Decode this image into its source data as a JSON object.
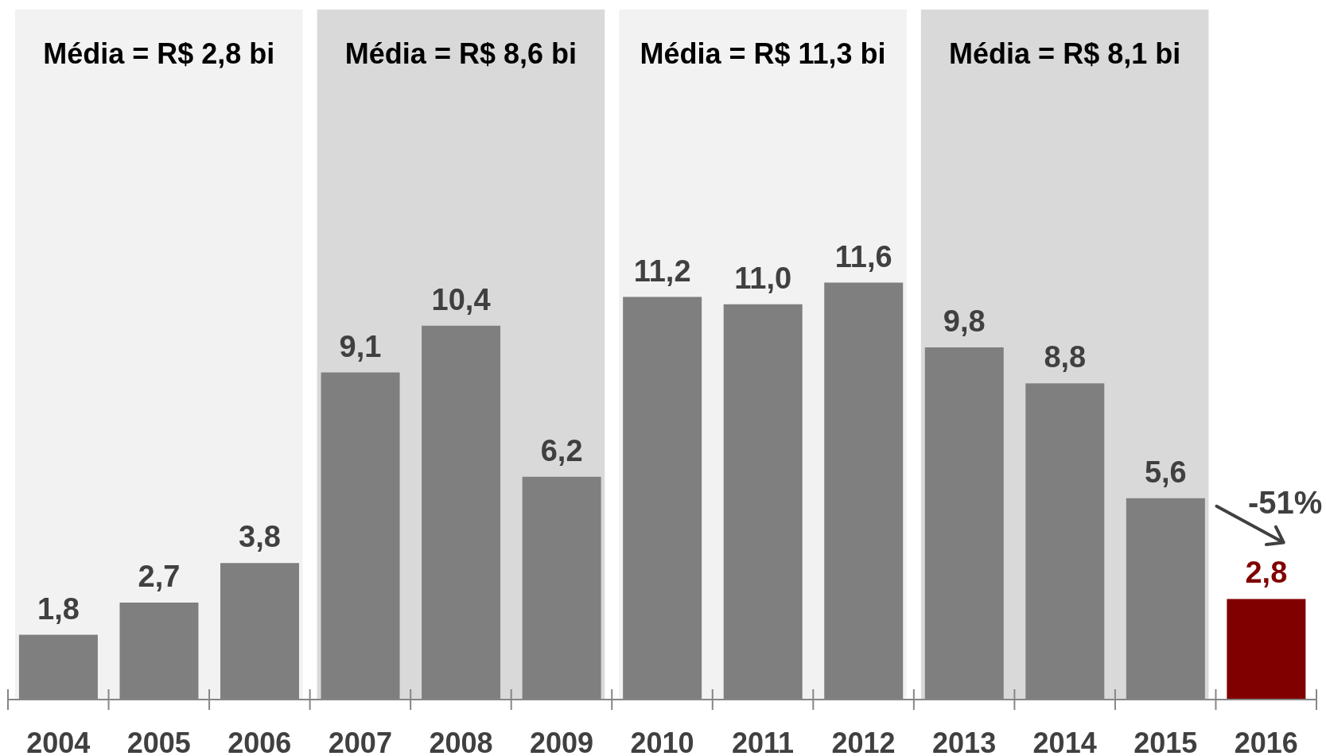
{
  "chart_data": {
    "type": "bar",
    "categories": [
      "2004",
      "2005",
      "2006",
      "2007",
      "2008",
      "2009",
      "2010",
      "2011",
      "2012",
      "2013",
      "2014",
      "2015",
      "2016"
    ],
    "values": [
      1.8,
      2.7,
      3.8,
      9.1,
      10.4,
      6.2,
      11.2,
      11.0,
      11.6,
      9.8,
      8.8,
      5.6,
      2.8
    ],
    "colors": [
      "#7f7f7f",
      "#7f7f7f",
      "#7f7f7f",
      "#7f7f7f",
      "#7f7f7f",
      "#7f7f7f",
      "#7f7f7f",
      "#7f7f7f",
      "#7f7f7f",
      "#7f7f7f",
      "#7f7f7f",
      "#7f7f7f",
      "#800000"
    ],
    "value_labels": [
      "1,8",
      "2,7",
      "3,8",
      "9,1",
      "10,4",
      "6,2",
      "11,2",
      "11,0",
      "11,6",
      "9,8",
      "8,8",
      "5,6",
      "2,8"
    ],
    "bands": [
      {
        "axis": "x",
        "from": "2004",
        "to": "2006",
        "label": "Média = R$ 2,8 bi",
        "color": "#f2f2f2"
      },
      {
        "axis": "x",
        "from": "2007",
        "to": "2009",
        "label": "Média = R$ 8,6 bi",
        "color": "#d9d9d9"
      },
      {
        "axis": "x",
        "from": "2010",
        "to": "2012",
        "label": "Média = R$ 11,3 bi",
        "color": "#f2f2f2"
      },
      {
        "axis": "x",
        "from": "2013",
        "to": "2015",
        "label": "Média = R$ 8,1 bi",
        "color": "#d9d9d9"
      }
    ],
    "annotations": [
      "-51%"
    ]
  }
}
